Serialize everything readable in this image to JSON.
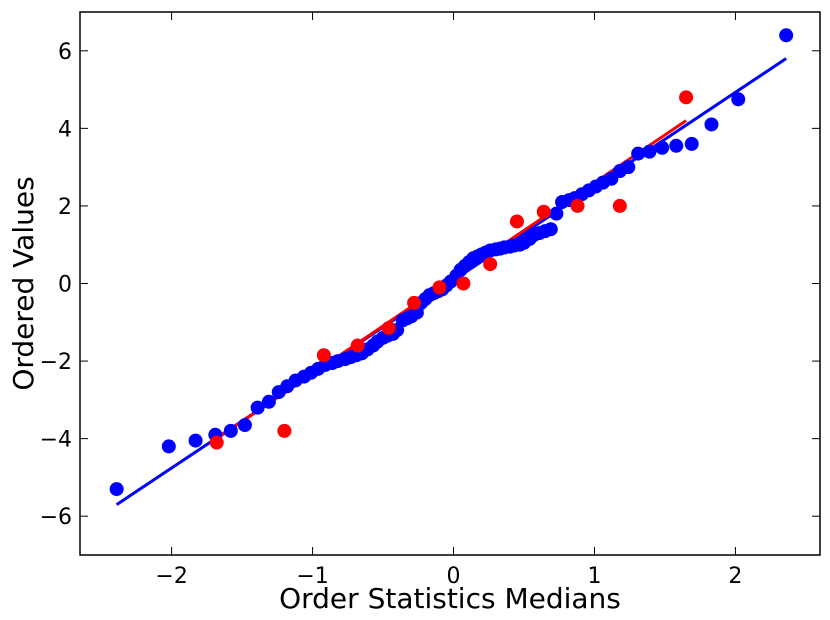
{
  "chart_data": {
    "type": "scatter",
    "title": "",
    "xlabel": "Order Statistics Medians",
    "ylabel": "Ordered Values",
    "xlim": [
      -2.65,
      2.6
    ],
    "ylim": [
      -7,
      7
    ],
    "xticks": [
      -2,
      -1,
      0,
      1,
      2
    ],
    "xtick_labels": [
      "−2",
      "−1",
      "0",
      "1",
      "2"
    ],
    "yticks": [
      -6,
      -4,
      -2,
      0,
      2,
      4,
      6
    ],
    "ytick_labels": [
      "−6",
      "−4",
      "−2",
      "0",
      "2",
      "4",
      "6"
    ],
    "grid": false,
    "series": [
      {
        "color": "#0000ff",
        "points": [
          [
            -2.39,
            -5.3
          ],
          [
            -2.02,
            -4.2
          ],
          [
            -1.83,
            -4.05
          ],
          [
            -1.69,
            -3.9
          ],
          [
            -1.58,
            -3.8
          ],
          [
            -1.48,
            -3.65
          ],
          [
            -1.39,
            -3.2
          ],
          [
            -1.31,
            -3.05
          ],
          [
            -1.24,
            -2.8
          ],
          [
            -1.18,
            -2.65
          ],
          [
            -1.12,
            -2.5
          ],
          [
            -1.06,
            -2.4
          ],
          [
            -1.01,
            -2.3
          ],
          [
            -0.96,
            -2.2
          ],
          [
            -0.91,
            -2.1
          ],
          [
            -0.86,
            -2.05
          ],
          [
            -0.82,
            -2.0
          ],
          [
            -0.77,
            -1.95
          ],
          [
            -0.73,
            -1.9
          ],
          [
            -0.69,
            -1.85
          ],
          [
            -0.65,
            -1.8
          ],
          [
            -0.61,
            -1.7
          ],
          [
            -0.57,
            -1.6
          ],
          [
            -0.54,
            -1.5
          ],
          [
            -0.5,
            -1.4
          ],
          [
            -0.47,
            -1.35
          ],
          [
            -0.43,
            -1.3
          ],
          [
            -0.4,
            -1.2
          ],
          [
            -0.36,
            -0.95
          ],
          [
            -0.33,
            -0.9
          ],
          [
            -0.3,
            -0.85
          ],
          [
            -0.26,
            -0.75
          ],
          [
            -0.23,
            -0.5
          ],
          [
            -0.2,
            -0.4
          ],
          [
            -0.17,
            -0.3
          ],
          [
            -0.14,
            -0.25
          ],
          [
            -0.11,
            -0.2
          ],
          [
            -0.08,
            -0.15
          ],
          [
            -0.05,
            -0.05
          ],
          [
            -0.02,
            0.05
          ],
          [
            0.02,
            0.2
          ],
          [
            0.05,
            0.35
          ],
          [
            0.08,
            0.45
          ],
          [
            0.11,
            0.55
          ],
          [
            0.14,
            0.65
          ],
          [
            0.17,
            0.7
          ],
          [
            0.2,
            0.75
          ],
          [
            0.23,
            0.8
          ],
          [
            0.26,
            0.85
          ],
          [
            0.3,
            0.88
          ],
          [
            0.33,
            0.9
          ],
          [
            0.36,
            0.93
          ],
          [
            0.4,
            0.95
          ],
          [
            0.43,
            0.98
          ],
          [
            0.47,
            1.0
          ],
          [
            0.5,
            1.05
          ],
          [
            0.54,
            1.15
          ],
          [
            0.57,
            1.25
          ],
          [
            0.61,
            1.3
          ],
          [
            0.65,
            1.35
          ],
          [
            0.69,
            1.4
          ],
          [
            0.73,
            1.8
          ],
          [
            0.77,
            2.1
          ],
          [
            0.82,
            2.15
          ],
          [
            0.86,
            2.2
          ],
          [
            0.91,
            2.3
          ],
          [
            0.96,
            2.4
          ],
          [
            1.01,
            2.5
          ],
          [
            1.06,
            2.6
          ],
          [
            1.12,
            2.7
          ],
          [
            1.18,
            2.9
          ],
          [
            1.24,
            3.0
          ],
          [
            1.31,
            3.35
          ],
          [
            1.39,
            3.4
          ],
          [
            1.48,
            3.5
          ],
          [
            1.58,
            3.55
          ],
          [
            1.69,
            3.6
          ],
          [
            1.83,
            4.1
          ],
          [
            2.02,
            4.75
          ],
          [
            2.36,
            6.4
          ]
        ],
        "fit_line": [
          [
            -2.39,
            -5.7
          ],
          [
            2.36,
            5.8
          ]
        ]
      },
      {
        "color": "#ff0000",
        "points": [
          [
            -1.68,
            -4.1
          ],
          [
            -1.2,
            -3.8
          ],
          [
            -0.92,
            -1.85
          ],
          [
            -0.68,
            -1.6
          ],
          [
            -0.46,
            -1.15
          ],
          [
            -0.28,
            -0.5
          ],
          [
            -0.1,
            -0.1
          ],
          [
            0.07,
            0.0
          ],
          [
            0.26,
            0.5
          ],
          [
            0.45,
            1.6
          ],
          [
            0.64,
            1.85
          ],
          [
            0.88,
            2.0
          ],
          [
            1.18,
            2.0
          ],
          [
            1.65,
            4.8
          ]
        ],
        "fit_line": [
          [
            -1.68,
            -4.0
          ],
          [
            1.65,
            4.2
          ]
        ]
      }
    ]
  }
}
